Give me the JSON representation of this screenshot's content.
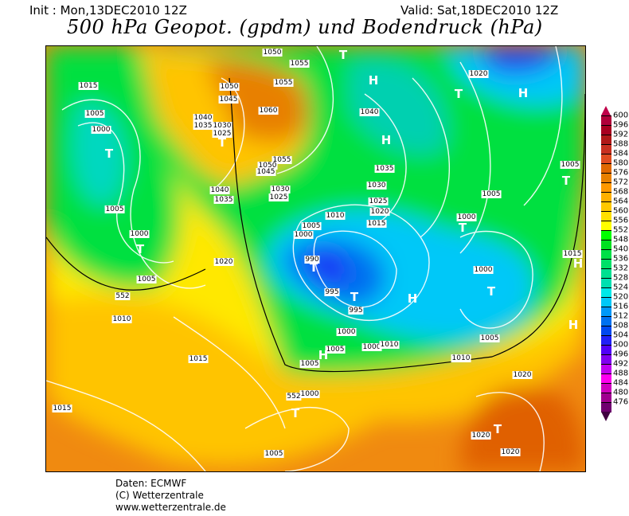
{
  "header": {
    "init": "Init : Mon,13DEC2010 12Z",
    "valid": "Valid: Sat,18DEC2010 12Z",
    "title": "500 hPa Geopot. (gpdm) und Bodendruck (hPa)"
  },
  "map": {
    "isobar_labels": [
      "1015",
      "1005",
      "1000",
      "1005",
      "1000",
      "1005",
      "1010",
      "1015",
      "1015",
      "1020",
      "1050",
      "1055",
      "1050",
      "1045",
      "1055",
      "1060",
      "1040",
      "1035",
      "1030",
      "1025",
      "1055",
      "1050",
      "1045",
      "1040",
      "1035",
      "1030",
      "1025",
      "1040",
      "1035",
      "1030",
      "1025",
      "1020",
      "1015",
      "1010",
      "1005",
      "1000",
      "990",
      "995",
      "995",
      "1000",
      "1005",
      "1005",
      "1000",
      "1010",
      "1010",
      "1005",
      "1000",
      "1000",
      "1005",
      "1005",
      "1015",
      "1020",
      "1020",
      "1020",
      "1020",
      "1005",
      "1000",
      "552",
      "552"
    ],
    "pressure_centers": [
      "T",
      "T",
      "T",
      "T",
      "T",
      "T",
      "T",
      "T",
      "T",
      "T",
      "T",
      "T",
      "H",
      "H",
      "H",
      "H",
      "H",
      "H",
      "H"
    ]
  },
  "legend": {
    "unit": "gpdm",
    "ticks": [
      "600",
      "596",
      "592",
      "588",
      "584",
      "580",
      "576",
      "572",
      "568",
      "564",
      "560",
      "556",
      "552",
      "548",
      "540",
      "536",
      "532",
      "528",
      "524",
      "520",
      "516",
      "512",
      "508",
      "504",
      "500",
      "496",
      "492",
      "488",
      "484",
      "480",
      "476"
    ],
    "colors": [
      "#b0003a",
      "#a80020",
      "#b01818",
      "#c83020",
      "#e04c20",
      "#e06800",
      "#e88000",
      "#ff9800",
      "#ffb000",
      "#ffc800",
      "#ffe000",
      "#ffff00",
      "#00ff00",
      "#00e020",
      "#00e048",
      "#00e068",
      "#00e090",
      "#00e0b0",
      "#00e8e8",
      "#00c8f8",
      "#0098f8",
      "#0070f0",
      "#0048f0",
      "#2020f8",
      "#5000f8",
      "#8000f0",
      "#c000f0",
      "#ff00f0",
      "#d000c0",
      "#a00090",
      "#700070"
    ],
    "top_arrow": "#c0004a",
    "bottom_arrow": "#400040"
  },
  "footer": {
    "source": "Daten: ECMWF",
    "copyright": "(C) Wetterzentrale",
    "url": "www.wetterzentrale.de"
  }
}
